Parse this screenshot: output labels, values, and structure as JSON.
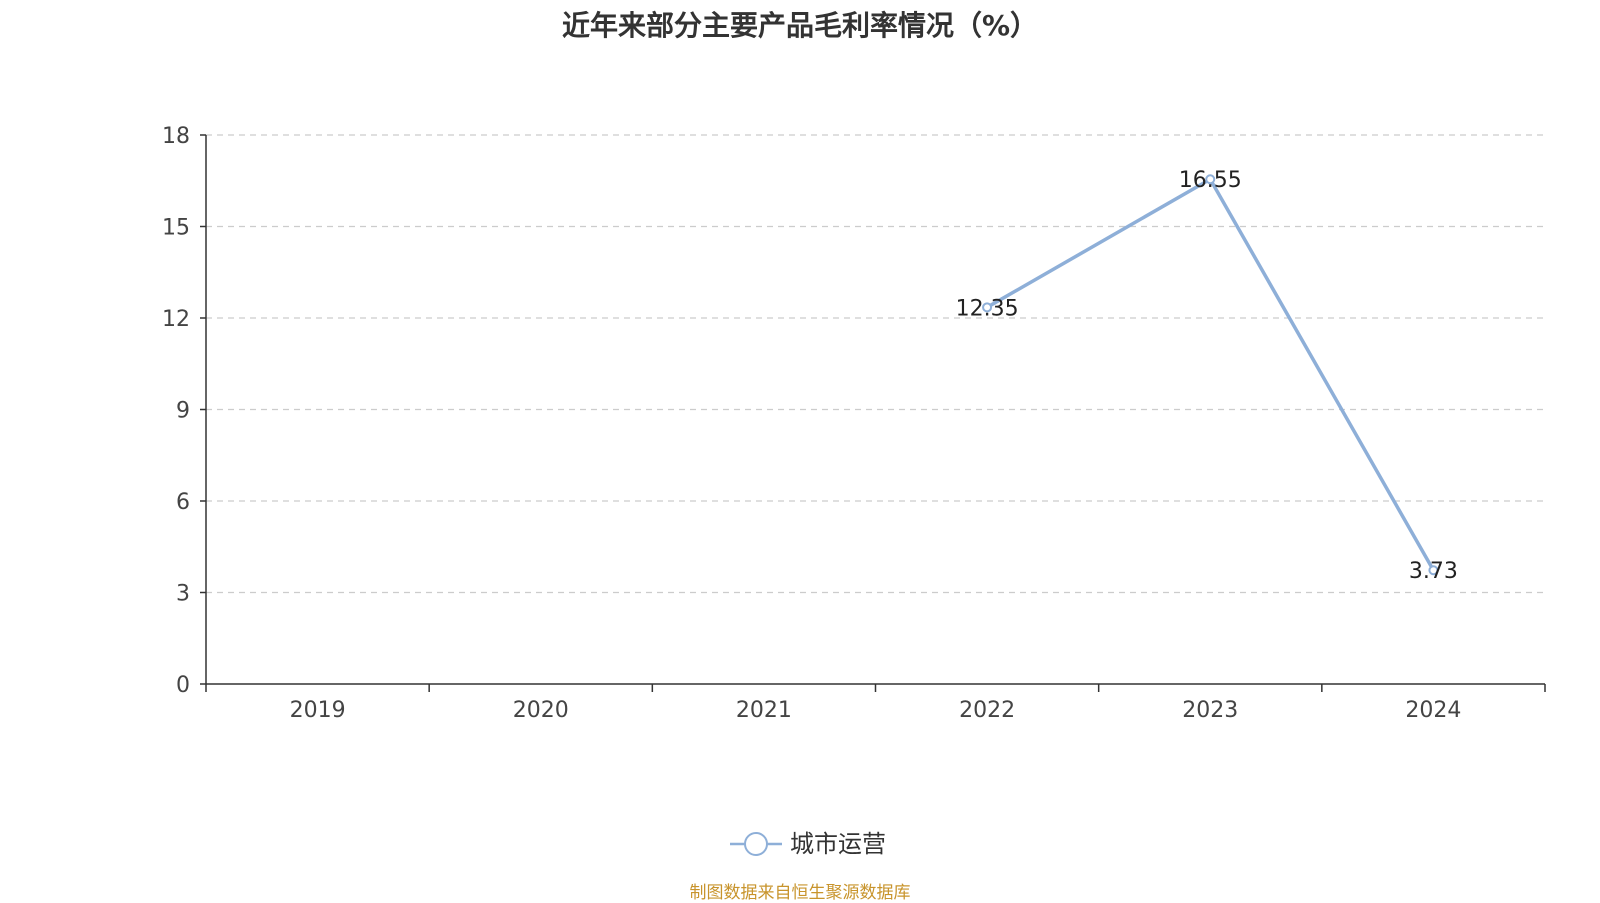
{
  "chart_data": {
    "type": "line",
    "title": "近年来部分主要产品毛利率情况（%）",
    "categories": [
      "2019",
      "2020",
      "2021",
      "2022",
      "2023",
      "2024"
    ],
    "series": [
      {
        "name": "城市运营",
        "values": [
          null,
          null,
          null,
          12.35,
          16.55,
          3.73
        ],
        "labels": [
          null,
          null,
          null,
          "12.35",
          "16.55",
          "3.73"
        ],
        "color": "#8eafd8"
      }
    ],
    "yticks": [
      "0",
      "3",
      "6",
      "9",
      "12",
      "15",
      "18"
    ],
    "ylim": [
      0,
      18
    ],
    "xlabel": "",
    "ylabel": "",
    "grid": "horizontal-dashed",
    "legend_position": "bottom-center"
  },
  "footer": {
    "source": "制图数据来自恒生聚源数据库"
  },
  "colors": {
    "axis": "#333333",
    "grid": "#cccccc",
    "tick_label": "#444444",
    "data_label": "#222222",
    "source": "#c8942c"
  }
}
